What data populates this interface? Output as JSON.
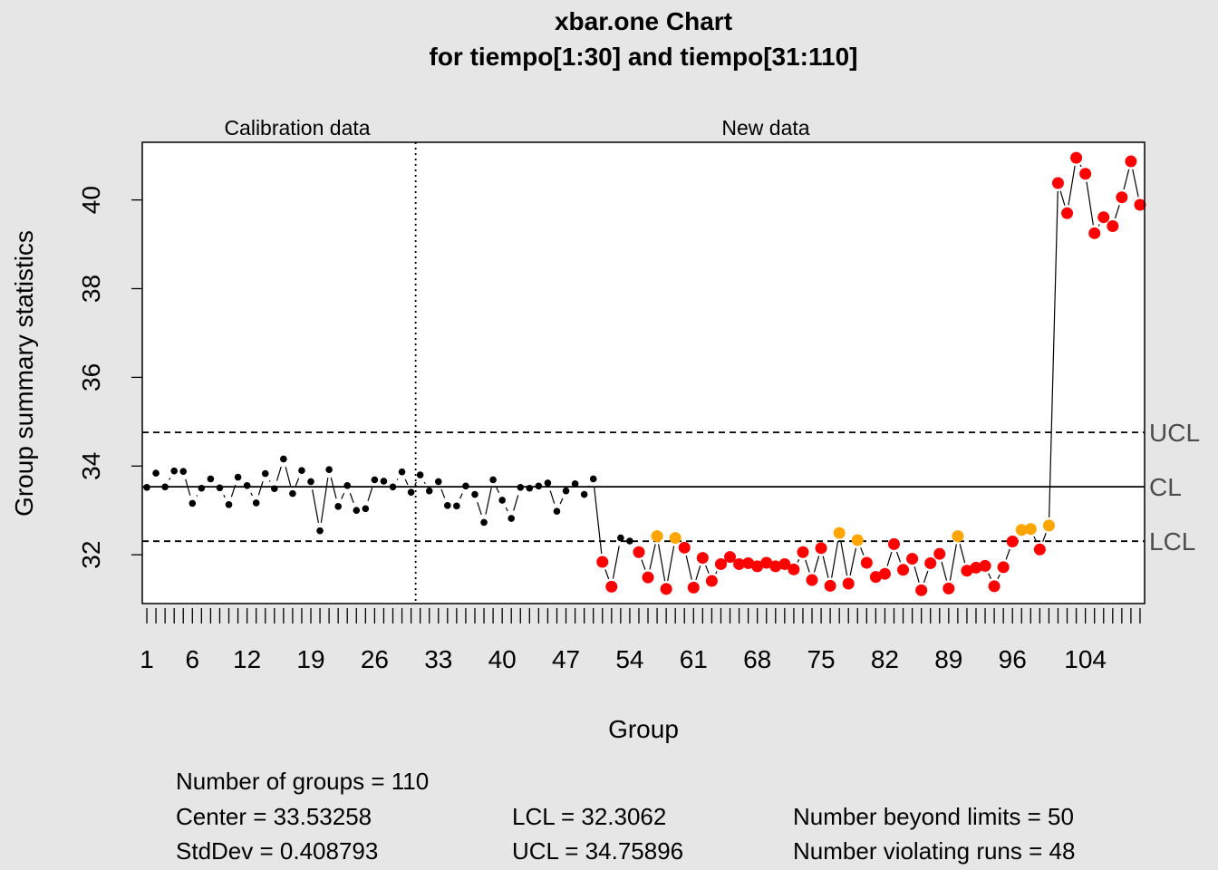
{
  "chart_data": {
    "type": "scatter",
    "chart_kind": "xbar.one control chart",
    "title": "xbar.one Chart",
    "subtitle": "for tiempo[1:30] and tiempo[31:110]",
    "xlabel": "Group",
    "ylabel": "Group summary statistics",
    "section_labels": [
      "Calibration data",
      "New data"
    ],
    "calibration_end_group": 30,
    "xlim": [
      0.5,
      110.5
    ],
    "ylim": [
      30.9,
      41.3
    ],
    "x_ticks": [
      1,
      6,
      12,
      19,
      26,
      33,
      40,
      47,
      54,
      61,
      68,
      75,
      82,
      89,
      96,
      104
    ],
    "y_ticks": [
      32,
      34,
      36,
      38,
      40
    ],
    "control_lines": [
      {
        "label": "UCL",
        "value": 34.75896,
        "style": "dashed"
      },
      {
        "label": "CL",
        "value": 33.53258,
        "style": "solid"
      },
      {
        "label": "LCL",
        "value": 32.3062,
        "style": "dashed"
      }
    ],
    "point_colors": {
      "in_control": "#000000",
      "violating_run": "#ffa500",
      "beyond_limits": "#ff0000"
    },
    "grid": false,
    "values": [
      33.52,
      33.84,
      33.53,
      33.89,
      33.88,
      33.16,
      33.5,
      33.71,
      33.51,
      33.13,
      33.75,
      33.56,
      33.17,
      33.83,
      33.49,
      34.16,
      33.38,
      33.9,
      33.65,
      32.54,
      33.92,
      33.09,
      33.56,
      33.0,
      33.04,
      33.69,
      33.66,
      33.53,
      33.87,
      33.41,
      33.8,
      33.44,
      33.65,
      33.11,
      33.1,
      33.55,
      33.36,
      32.73,
      33.69,
      33.23,
      32.82,
      33.52,
      33.5,
      33.55,
      33.62,
      32.98,
      33.44,
      33.6,
      33.36,
      33.71,
      31.84,
      31.28,
      32.38,
      32.31,
      32.06,
      31.49,
      32.42,
      31.23,
      32.38,
      32.16,
      31.26,
      31.93,
      31.41,
      31.79,
      31.95,
      31.79,
      31.81,
      31.74,
      31.82,
      31.74,
      31.79,
      31.67,
      32.06,
      31.43,
      32.15,
      31.3,
      32.49,
      31.35,
      32.33,
      31.82,
      31.5,
      31.57,
      32.24,
      31.66,
      31.91,
      31.2,
      31.81,
      32.02,
      31.24,
      32.42,
      31.64,
      31.71,
      31.75,
      31.29,
      31.72,
      32.3,
      32.56,
      32.58,
      32.12,
      32.66,
      40.38,
      39.7,
      40.95,
      40.59,
      39.25,
      39.61,
      39.41,
      40.06,
      40.87,
      39.89
    ],
    "violating_runs": [
      57,
      59,
      77,
      79,
      90,
      97,
      98,
      100
    ],
    "stats": {
      "groups": "Number of groups = 110",
      "center": "Center = 33.53258",
      "stddev": "StdDev = 0.408793",
      "lcl": "LCL = 32.3062",
      "ucl": "UCL = 34.75896",
      "beyond": "Number beyond limits = 50",
      "violating": "Number violating runs = 48"
    }
  }
}
